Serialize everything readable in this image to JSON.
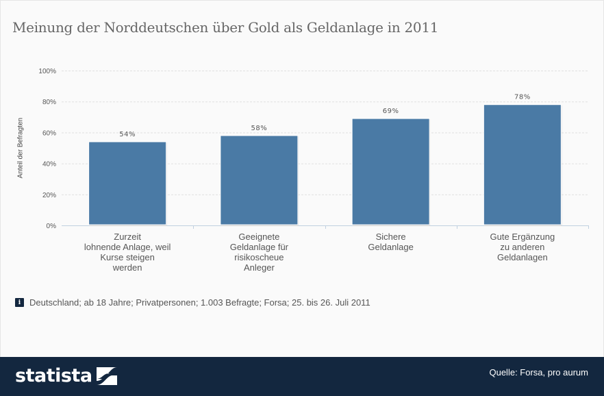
{
  "colors": {
    "bar": "#4a7aa5",
    "footer_bg": "#13273f",
    "background": "#fafafa"
  },
  "info_icon": "info-icon",
  "footer": {
    "logo_text": "statista",
    "logo_icon": "statista-logo-mark",
    "source": "Quelle: Forsa, pro aurum"
  },
  "chart_data": {
    "type": "bar",
    "title": "Meinung der Norddeutschen über Gold als Geldanlage in 2011",
    "xlabel": "",
    "ylabel": "Anteil der Befragten",
    "ylim": [
      0,
      100
    ],
    "yticks": [
      0,
      20,
      40,
      60,
      80,
      100
    ],
    "ytick_labels": [
      "0%",
      "20%",
      "40%",
      "60%",
      "80%",
      "100%"
    ],
    "grid": true,
    "categories": [
      [
        "Zurzeit",
        "lohnende Anlage, weil",
        "Kurse steigen",
        "werden"
      ],
      [
        "Geeignete",
        "Geldanlage für",
        "risikoscheue",
        "Anleger"
      ],
      [
        "Sichere",
        "Geldanlage"
      ],
      [
        "Gute Ergänzung",
        "zu anderen",
        "Geldanlagen"
      ]
    ],
    "values": [
      54,
      58,
      69,
      78
    ],
    "data_labels": [
      "54%",
      "58%",
      "69%",
      "78%"
    ],
    "note": "Deutschland; ab 18 Jahre; Privatpersonen; 1.003 Befragte; Forsa; 25. bis 26. Juli 2011"
  }
}
